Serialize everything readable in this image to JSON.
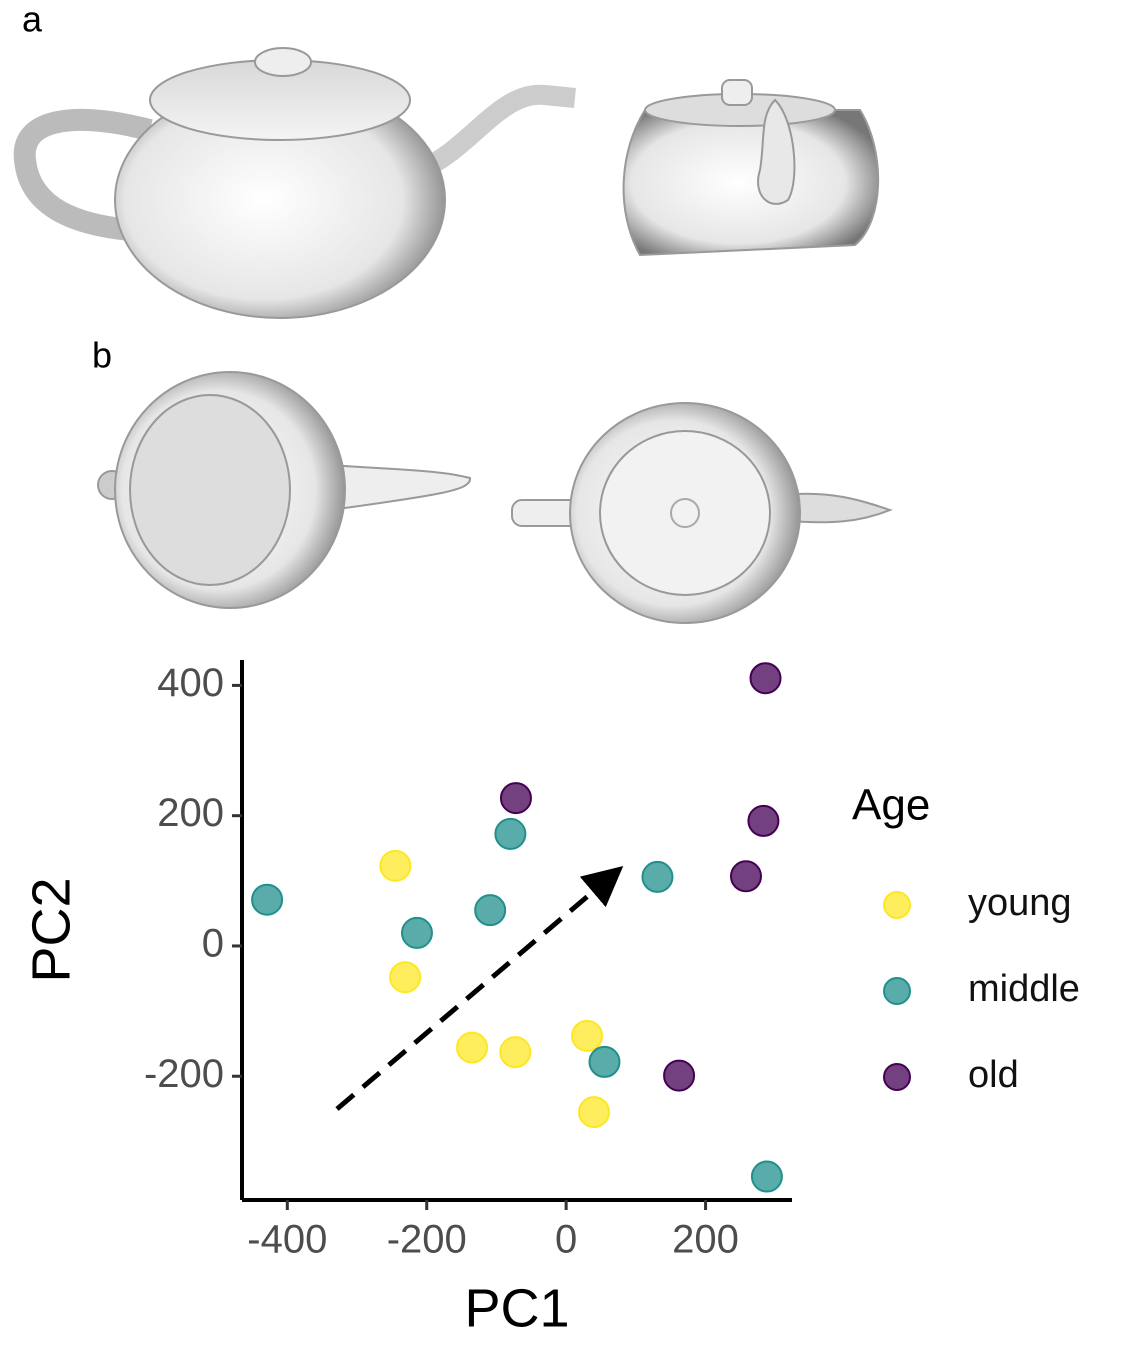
{
  "panel_labels": [
    "a",
    "b"
  ],
  "chart_data": {
    "type": "scatter",
    "x_label": "PC1",
    "y_label": "PC2",
    "legend_title": "Age",
    "legend_position": "right",
    "xlim": [
      -465,
      324
    ],
    "ylim": [
      -390,
      439
    ],
    "xticks": [
      -400,
      -200,
      0,
      200
    ],
    "yticks": [
      -200,
      0,
      200,
      400
    ],
    "series": [
      {
        "name": "young",
        "color": "#fde725",
        "x": [
          -245,
          -231,
          -135,
          -73,
          30,
          40
        ],
        "values": [
          123,
          -48,
          -156,
          -163,
          -138,
          -255
        ]
      },
      {
        "name": "middle",
        "color": "#21908c",
        "x": [
          -429,
          -214,
          -80,
          -109,
          131,
          55,
          288
        ],
        "values": [
          71,
          20,
          172,
          55,
          106,
          -178,
          -354
        ]
      },
      {
        "name": "old",
        "color": "#440154",
        "x": [
          286,
          -72,
          283,
          258,
          162
        ],
        "values": [
          411,
          227,
          192,
          107,
          -199
        ]
      }
    ]
  }
}
